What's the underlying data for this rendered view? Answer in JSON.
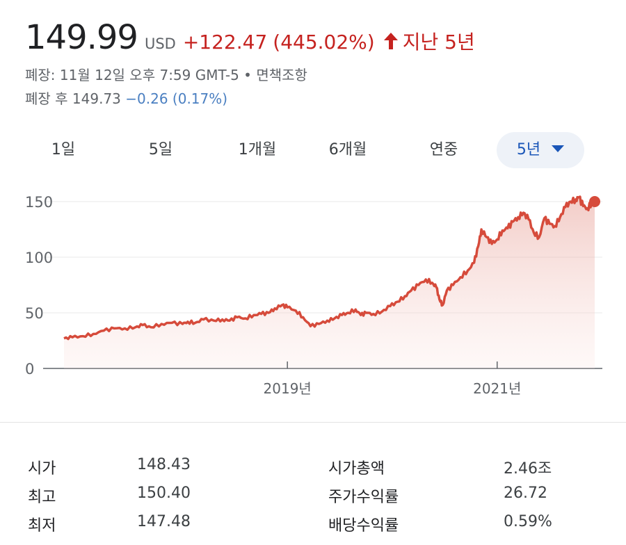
{
  "quote": {
    "price": "149.99",
    "currency": "USD",
    "change": "+122.47",
    "change_pct": "(445.02%)",
    "period": "지난 5년",
    "status_line": "폐장: 11월 12일 오후 7:59 GMT-5 • 면책조항",
    "after_hours_label": "폐장 후 149.73",
    "after_hours_change": "−0.26 (0.17%)"
  },
  "colors": {
    "negative": "#c5221f",
    "after_hours": "#4a7fc1",
    "selected_tab": "#1a56b8",
    "line": "#d64b3b"
  },
  "range_tabs": [
    {
      "label": "1일",
      "selected": false
    },
    {
      "label": "5일",
      "selected": false
    },
    {
      "label": "1개월",
      "selected": false
    },
    {
      "label": "6개월",
      "selected": false
    },
    {
      "label": "연중",
      "selected": false
    },
    {
      "label": "5년",
      "selected": true
    }
  ],
  "chart_data": {
    "type": "area",
    "ylim": [
      0,
      150
    ],
    "y_ticks": [
      "150",
      "100",
      "50",
      "0"
    ],
    "x_ticks": [
      "2019년",
      "2021년"
    ],
    "grid": true,
    "last_value": 149.99,
    "points": [
      [
        2016.87,
        27
      ],
      [
        2016.95,
        28
      ],
      [
        2017.05,
        29
      ],
      [
        2017.15,
        31
      ],
      [
        2017.25,
        34
      ],
      [
        2017.35,
        36
      ],
      [
        2017.45,
        36
      ],
      [
        2017.55,
        37
      ],
      [
        2017.62,
        39
      ],
      [
        2017.7,
        37
      ],
      [
        2017.8,
        40
      ],
      [
        2017.9,
        41
      ],
      [
        2018.0,
        40
      ],
      [
        2018.05,
        42
      ],
      [
        2018.12,
        41
      ],
      [
        2018.2,
        44
      ],
      [
        2018.3,
        43
      ],
      [
        2018.38,
        44
      ],
      [
        2018.45,
        43
      ],
      [
        2018.52,
        46
      ],
      [
        2018.6,
        45
      ],
      [
        2018.68,
        48
      ],
      [
        2018.75,
        49
      ],
      [
        2018.82,
        50
      ],
      [
        2018.88,
        54
      ],
      [
        2018.95,
        57
      ],
      [
        2019.0,
        55
      ],
      [
        2019.08,
        52
      ],
      [
        2019.15,
        46
      ],
      [
        2019.22,
        38
      ],
      [
        2019.3,
        40
      ],
      [
        2019.38,
        43
      ],
      [
        2019.45,
        45
      ],
      [
        2019.52,
        48
      ],
      [
        2019.58,
        50
      ],
      [
        2019.65,
        53
      ],
      [
        2019.7,
        48
      ],
      [
        2019.75,
        50
      ],
      [
        2019.82,
        49
      ],
      [
        2019.9,
        51
      ],
      [
        2019.98,
        56
      ],
      [
        2020.05,
        60
      ],
      [
        2020.12,
        65
      ],
      [
        2020.18,
        70
      ],
      [
        2020.25,
        75
      ],
      [
        2020.32,
        80
      ],
      [
        2020.38,
        77
      ],
      [
        2020.42,
        73
      ],
      [
        2020.45,
        62
      ],
      [
        2020.48,
        57
      ],
      [
        2020.52,
        70
      ],
      [
        2020.58,
        75
      ],
      [
        2020.65,
        82
      ],
      [
        2020.72,
        88
      ],
      [
        2020.78,
        95
      ],
      [
        2020.82,
        110
      ],
      [
        2020.85,
        125
      ],
      [
        2020.9,
        118
      ],
      [
        2020.95,
        112
      ],
      [
        2021.0,
        116
      ],
      [
        2021.05,
        124
      ],
      [
        2021.1,
        126
      ],
      [
        2021.15,
        132
      ],
      [
        2021.2,
        136
      ],
      [
        2021.25,
        140
      ],
      [
        2021.3,
        134
      ],
      [
        2021.35,
        122
      ],
      [
        2021.4,
        118
      ],
      [
        2021.45,
        135
      ],
      [
        2021.5,
        130
      ],
      [
        2021.55,
        128
      ],
      [
        2021.6,
        136
      ],
      [
        2021.65,
        145
      ],
      [
        2021.7,
        150
      ],
      [
        2021.75,
        152
      ],
      [
        2021.78,
        154
      ],
      [
        2021.82,
        146
      ],
      [
        2021.86,
        144
      ],
      [
        2021.9,
        148
      ],
      [
        2021.93,
        150
      ]
    ]
  },
  "stats": {
    "left": [
      {
        "label": "시가",
        "value": "148.43"
      },
      {
        "label": "최고",
        "value": "150.40"
      },
      {
        "label": "최저",
        "value": "147.48"
      }
    ],
    "right": [
      {
        "label": "시가총액",
        "value": "2.46조"
      },
      {
        "label": "주가수익률",
        "value": "26.72"
      },
      {
        "label": "배당수익률",
        "value": "0.59%"
      }
    ]
  }
}
